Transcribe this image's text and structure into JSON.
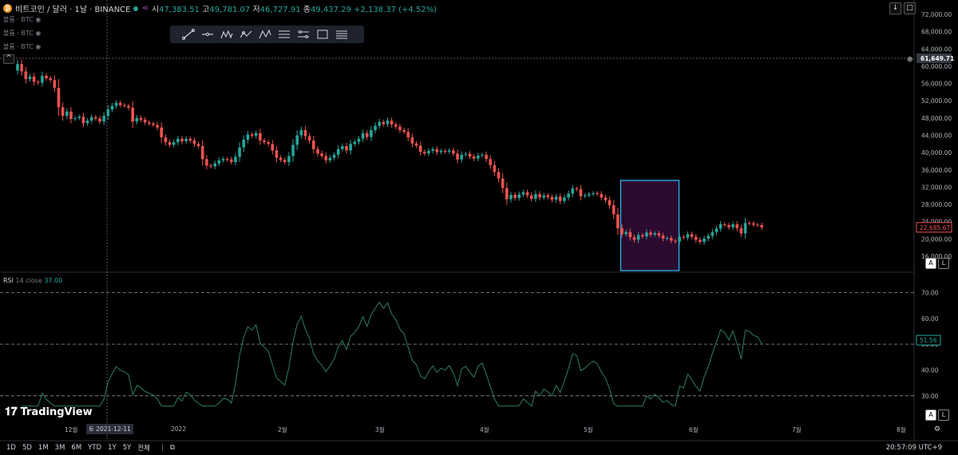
{
  "header": {
    "symbol": "비트코인 / 달러 · 1날 · BINANCE",
    "open_label": "시",
    "open": "47,383.51",
    "high_label": "고",
    "high": "49,781.07",
    "low_label": "저",
    "low": "46,727.91",
    "close_label": "종",
    "close": "49,437.29",
    "change": "+2,138.37 (+4.52%)"
  },
  "indicators": [
    "볼륨 · BTC",
    "볼륨 · BTC",
    "볼륨 · BTC"
  ],
  "toolbar_icons": [
    "grip-icon",
    "trend-line-icon",
    "horizontal-line-icon",
    "pattern-icon",
    "path-icon",
    "zigzag-icon",
    "fib-icon",
    "range-icon",
    "rectangle-icon",
    "settings-lines-icon"
  ],
  "colors": {
    "up": "#26a69a",
    "down": "#ef5350",
    "box_border": "#29b6f6",
    "box_fill": "#2a0a2e",
    "rsi_line": "#2e7d66"
  },
  "price_axis": {
    "ticks": [
      "72,000.00",
      "68,000.00",
      "64,000.00",
      "60,000.00",
      "56,000.00",
      "52,000.00",
      "48,000.00",
      "44,000.00",
      "40,000.00",
      "36,000.00",
      "32,000.00",
      "28,000.00",
      "24,000.00",
      "20,000.00",
      "16,000.00"
    ],
    "crosshair_price": "61,649.71",
    "last_price": "22,685.67"
  },
  "rsi": {
    "label": "RSI",
    "params": "14 close",
    "value": "37.00",
    "ticks": [
      "70.00",
      "60.00",
      "50.00",
      "40.00",
      "30.00"
    ],
    "current": "51.56"
  },
  "x_axis": {
    "labels": [
      "12월",
      "2022",
      "2월",
      "3월",
      "4월",
      "5월",
      "6월",
      "7월",
      "8월"
    ],
    "crosshair_date": "토 2021-12-11"
  },
  "brand": "TradingView",
  "ranges": [
    "1D",
    "5D",
    "1M",
    "3M",
    "6M",
    "YTD",
    "1Y",
    "5Y",
    "전체"
  ],
  "clock": "20:57:09 UTC+9",
  "chart_data": {
    "type": "candlestick",
    "ylim": [
      16000,
      72000
    ],
    "rsi_levels": [
      70,
      50,
      30
    ],
    "rsi_ylim": [
      25,
      72
    ],
    "highlight_box": {
      "from": "2022-05-11",
      "to": "2022-05-28",
      "price_range": [
        12000,
        34000
      ]
    },
    "closes": [
      60500,
      58800,
      57000,
      57600,
      56400,
      56200,
      57800,
      57200,
      56800,
      55000,
      50500,
      48500,
      49500,
      47800,
      48000,
      48300,
      46800,
      47400,
      48200,
      47900,
      47200,
      48500,
      50000,
      50800,
      51500,
      51000,
      50800,
      50400,
      47200,
      48000,
      47600,
      47000,
      46700,
      46400,
      45800,
      43500,
      42400,
      41800,
      42400,
      43200,
      42600,
      43200,
      42800,
      42000,
      41500,
      38500,
      37000,
      36800,
      37500,
      38200,
      38500,
      38400,
      37800,
      39000,
      41200,
      43000,
      44200,
      43900,
      44500,
      42800,
      42400,
      42000,
      40500,
      38800,
      38300,
      37800,
      39200,
      41800,
      44000,
      45200,
      43800,
      42800,
      40800,
      39800,
      39200,
      38200,
      38800,
      39500,
      40800,
      41500,
      40500,
      42000,
      42500,
      43200,
      44500,
      43600,
      45200,
      46200,
      47100,
      46600,
      47400,
      46500,
      46000,
      45200,
      44800,
      43500,
      42100,
      41600,
      40200,
      39800,
      40400,
      40800,
      40100,
      40400,
      40200,
      40500,
      39800,
      38400,
      39500,
      39700,
      39100,
      38600,
      39300,
      39500,
      38500,
      37100,
      35500,
      34000,
      31800,
      29200,
      30200,
      29500,
      30300,
      30800,
      30100,
      29300,
      30400,
      29600,
      30100,
      29700,
      29100,
      29800,
      28800,
      29600,
      30500,
      31700,
      31500,
      29900,
      30100,
      30400,
      30600,
      30400,
      29600,
      29000,
      27800,
      25700,
      22500,
      21100,
      21600,
      20400,
      19800,
      20900,
      20600,
      21500,
      21000,
      21300,
      20800,
      20100,
      20200,
      19600,
      19400,
      20500,
      20300,
      21100,
      20500,
      19800,
      19300,
      20100,
      20700,
      21600,
      22400,
      23400,
      23200,
      22700,
      23400,
      22500,
      21300,
      23700,
      23600,
      23300,
      23200,
      22685
    ]
  }
}
